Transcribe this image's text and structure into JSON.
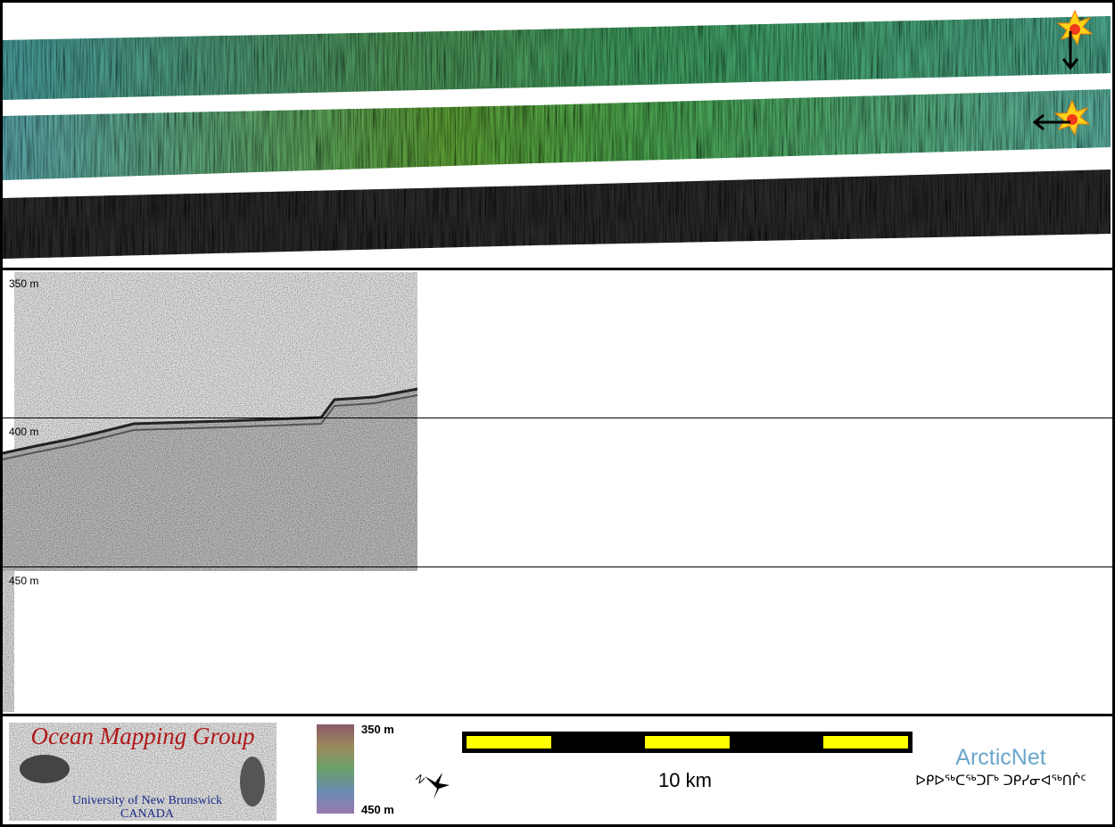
{
  "profile": {
    "depth_labels": [
      "350 m",
      "400 m",
      "450 m"
    ]
  },
  "legend": {
    "logo": {
      "title": "Ocean Mapping Group",
      "university": "University of New Brunswick",
      "country": "CANADA"
    },
    "colorbar": {
      "top_label": "350 m",
      "bottom_label": "450 m"
    },
    "compass": {
      "north_label": "N"
    },
    "scale_bar": {
      "label": "10 km"
    },
    "sponsor": {
      "name": "ArcticNet",
      "name_syllabics": "ᐅᑭᐅᖅᑕᖅᑐᒥᒃ ᑐᑭᓯᓂᐊᖅᑎᒌᑦ"
    }
  }
}
